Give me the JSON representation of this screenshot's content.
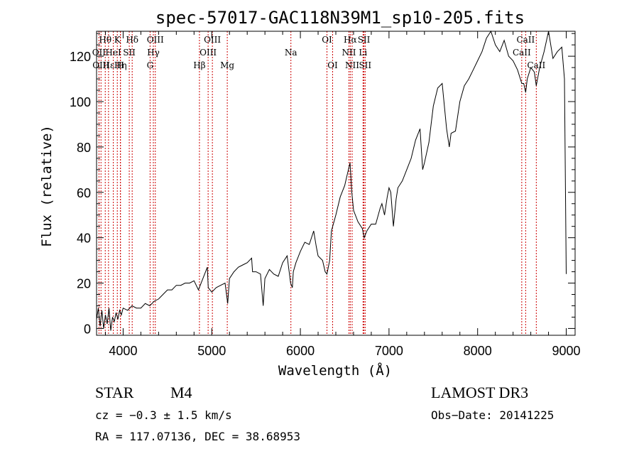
{
  "chart_data": {
    "type": "line",
    "title": "spec-57017-GAC118N39M1_sp10-205.fits",
    "xlabel": "Wavelength (Å)",
    "ylabel": "Flux (relative)",
    "xlim": [
      3700,
      9100
    ],
    "ylim": [
      -3,
      131
    ],
    "x_ticks": [
      4000,
      5000,
      6000,
      7000,
      8000,
      9000
    ],
    "y_ticks": [
      0,
      20,
      40,
      60,
      80,
      100,
      120
    ],
    "series": [
      {
        "name": "spectrum",
        "points": [
          [
            3700,
            4
          ],
          [
            3720,
            9
          ],
          [
            3740,
            1
          ],
          [
            3760,
            8
          ],
          [
            3780,
            0
          ],
          [
            3800,
            6
          ],
          [
            3820,
            2
          ],
          [
            3840,
            9
          ],
          [
            3860,
            -1
          ],
          [
            3880,
            5
          ],
          [
            3900,
            3
          ],
          [
            3920,
            7
          ],
          [
            3940,
            4
          ],
          [
            3960,
            8
          ],
          [
            3980,
            6
          ],
          [
            4000,
            9
          ],
          [
            4050,
            8
          ],
          [
            4100,
            10
          ],
          [
            4150,
            9
          ],
          [
            4200,
            9
          ],
          [
            4250,
            11
          ],
          [
            4300,
            10
          ],
          [
            4350,
            12
          ],
          [
            4400,
            13
          ],
          [
            4450,
            15
          ],
          [
            4500,
            17
          ],
          [
            4550,
            17
          ],
          [
            4600,
            19
          ],
          [
            4650,
            19
          ],
          [
            4700,
            20
          ],
          [
            4750,
            20
          ],
          [
            4800,
            21
          ],
          [
            4850,
            17
          ],
          [
            4900,
            22
          ],
          [
            4950,
            27
          ],
          [
            4960,
            18
          ],
          [
            5000,
            16
          ],
          [
            5050,
            18
          ],
          [
            5100,
            19
          ],
          [
            5150,
            20
          ],
          [
            5180,
            11
          ],
          [
            5200,
            22
          ],
          [
            5250,
            25
          ],
          [
            5300,
            27
          ],
          [
            5350,
            28
          ],
          [
            5400,
            29
          ],
          [
            5450,
            31
          ],
          [
            5460,
            25
          ],
          [
            5500,
            25
          ],
          [
            5550,
            24
          ],
          [
            5580,
            10
          ],
          [
            5600,
            22
          ],
          [
            5650,
            26
          ],
          [
            5700,
            24
          ],
          [
            5750,
            23
          ],
          [
            5800,
            29
          ],
          [
            5850,
            32
          ],
          [
            5890,
            20
          ],
          [
            5910,
            18
          ],
          [
            5920,
            25
          ],
          [
            5950,
            29
          ],
          [
            6000,
            34
          ],
          [
            6050,
            38
          ],
          [
            6100,
            37
          ],
          [
            6150,
            43
          ],
          [
            6180,
            36
          ],
          [
            6200,
            32
          ],
          [
            6250,
            30
          ],
          [
            6280,
            25
          ],
          [
            6300,
            24
          ],
          [
            6330,
            30
          ],
          [
            6350,
            43
          ],
          [
            6400,
            50
          ],
          [
            6450,
            58
          ],
          [
            6500,
            63
          ],
          [
            6530,
            68
          ],
          [
            6560,
            73
          ],
          [
            6580,
            60
          ],
          [
            6600,
            52
          ],
          [
            6650,
            47
          ],
          [
            6700,
            44
          ],
          [
            6720,
            40
          ],
          [
            6750,
            43
          ],
          [
            6800,
            46
          ],
          [
            6850,
            46
          ],
          [
            6900,
            53
          ],
          [
            6920,
            55
          ],
          [
            6950,
            50
          ],
          [
            6980,
            58
          ],
          [
            7000,
            62
          ],
          [
            7020,
            60
          ],
          [
            7050,
            45
          ],
          [
            7080,
            57
          ],
          [
            7100,
            62
          ],
          [
            7150,
            65
          ],
          [
            7200,
            70
          ],
          [
            7250,
            75
          ],
          [
            7300,
            83
          ],
          [
            7350,
            88
          ],
          [
            7380,
            70
          ],
          [
            7400,
            73
          ],
          [
            7450,
            82
          ],
          [
            7500,
            98
          ],
          [
            7550,
            106
          ],
          [
            7600,
            108
          ],
          [
            7650,
            88
          ],
          [
            7680,
            80
          ],
          [
            7700,
            86
          ],
          [
            7750,
            87
          ],
          [
            7800,
            100
          ],
          [
            7850,
            107
          ],
          [
            7900,
            110
          ],
          [
            7950,
            114
          ],
          [
            8000,
            118
          ],
          [
            8050,
            122
          ],
          [
            8100,
            128
          ],
          [
            8150,
            131
          ],
          [
            8200,
            125
          ],
          [
            8250,
            122
          ],
          [
            8300,
            127
          ],
          [
            8350,
            120
          ],
          [
            8400,
            118
          ],
          [
            8450,
            114
          ],
          [
            8498,
            108
          ],
          [
            8520,
            108
          ],
          [
            8542,
            104
          ],
          [
            8560,
            110
          ],
          [
            8600,
            115
          ],
          [
            8640,
            113
          ],
          [
            8662,
            107
          ],
          [
            8700,
            115
          ],
          [
            8750,
            122
          ],
          [
            8800,
            131
          ],
          [
            8850,
            119
          ],
          [
            8900,
            122
          ],
          [
            8950,
            124
          ],
          [
            8980,
            110
          ],
          [
            9000,
            24
          ]
        ]
      }
    ],
    "lines": [
      {
        "wave": 3798,
        "label": "Hθ",
        "row": 0
      },
      {
        "wave": 3727,
        "label": "OII",
        "row": 1
      },
      {
        "wave": 3750,
        "label": "OIII",
        "row": 2
      },
      {
        "wave": 3835,
        "label": "Hε",
        "row": 2
      },
      {
        "wave": 3889,
        "label": "HeI",
        "row": 1
      },
      {
        "wave": 3934,
        "label": "K",
        "row": 0
      },
      {
        "wave": 3969,
        "label": "H",
        "row": 2
      },
      {
        "wave": 3970,
        "label": "Hη",
        "row": 2
      },
      {
        "wave": 4069,
        "label": "SII",
        "row": 1
      },
      {
        "wave": 4102,
        "label": "Hδ",
        "row": 0
      },
      {
        "wave": 4304,
        "label": "G",
        "row": 2
      },
      {
        "wave": 4341,
        "label": "Hγ",
        "row": 1
      },
      {
        "wave": 4363,
        "label": "OIII",
        "row": 0
      },
      {
        "wave": 4861,
        "label": "Hβ",
        "row": 2
      },
      {
        "wave": 4959,
        "label": "OIII",
        "row": 1
      },
      {
        "wave": 5007,
        "label": "OIII",
        "row": 0
      },
      {
        "wave": 5175,
        "label": "Mg",
        "row": 2
      },
      {
        "wave": 5893,
        "label": "Na",
        "row": 1
      },
      {
        "wave": 6300,
        "label": "OI",
        "row": 0
      },
      {
        "wave": 6364,
        "label": "OI",
        "row": 2
      },
      {
        "wave": 6548,
        "label": "NII",
        "row": 1
      },
      {
        "wave": 6563,
        "label": "Hα",
        "row": 0
      },
      {
        "wave": 6584,
        "label": "NII",
        "row": 2
      },
      {
        "wave": 6707,
        "label": "Li",
        "row": 1
      },
      {
        "wave": 6717,
        "label": "SII",
        "row": 0
      },
      {
        "wave": 6731,
        "label": "SII",
        "row": 2
      },
      {
        "wave": 8498,
        "label": "CaII",
        "row": 1
      },
      {
        "wave": 8542,
        "label": "CaII",
        "row": 0
      },
      {
        "wave": 8662,
        "label": "CaII",
        "row": 2
      }
    ],
    "colors": {
      "line_marker": "#cc0000",
      "spectrum": "#000000"
    }
  },
  "info": {
    "object_class": "STAR",
    "subclass": "M4",
    "survey": "LAMOST DR3",
    "cz": "cz = −0.3 ± 1.5 km/s",
    "obs_date": "Obs−Date: 20141225",
    "coords": "RA = 117.07136, DEC =  38.68953"
  }
}
